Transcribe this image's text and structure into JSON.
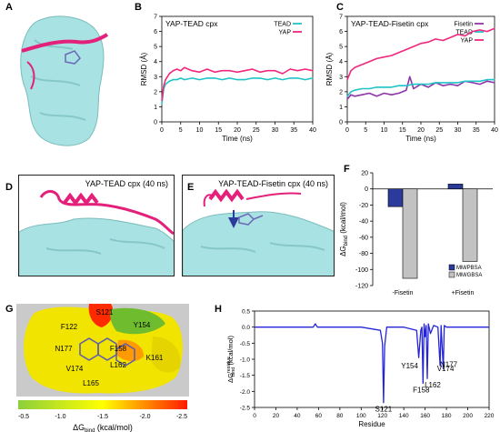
{
  "panels": {
    "A": {
      "label": "A"
    },
    "B": {
      "label": "B",
      "title": "YAP-TEAD cpx"
    },
    "C": {
      "label": "C",
      "title": "YAP-TEAD-Fisetin cpx"
    },
    "D": {
      "label": "D",
      "title": "YAP-TEAD cpx (40 ns)"
    },
    "E": {
      "label": "E",
      "title": "YAP-TEAD-Fisetin cpx (40 ns)"
    },
    "F": {
      "label": "F"
    },
    "G": {
      "label": "G",
      "residues": [
        "S121",
        "Y154",
        "F122",
        "N177",
        "F158",
        "V174",
        "L162",
        "K161",
        "L165"
      ],
      "colorbar_ticks": [
        "-0.5",
        "-1.0",
        "-1.5",
        "-2.0",
        "-2.5"
      ],
      "colorbar_label": "ΔG",
      "colorbar_label_sub": "bind",
      "colorbar_label_unit": " (kcal/mol)"
    },
    "H": {
      "label": "H"
    }
  },
  "chart_data": [
    {
      "id": "B",
      "type": "line",
      "title": "YAP-TEAD cpx",
      "xlabel": "Time (ns)",
      "ylabel": "RMSD (Å)",
      "xlim": [
        0,
        40
      ],
      "ylim": [
        0,
        7
      ],
      "xticks": [
        0,
        5,
        10,
        15,
        20,
        25,
        30,
        35,
        40
      ],
      "yticks": [
        0,
        1,
        2,
        3,
        4,
        5,
        6,
        7
      ],
      "legend_position": "top-right",
      "series": [
        {
          "name": "TEAD",
          "color": "#1fc3c8",
          "x": [
            0,
            0.5,
            1,
            2,
            3,
            4,
            5,
            6,
            8,
            10,
            12,
            14,
            16,
            18,
            20,
            22,
            24,
            26,
            28,
            30,
            32,
            34,
            36,
            38,
            40
          ],
          "values": [
            1.2,
            2.2,
            2.5,
            2.7,
            2.8,
            2.8,
            2.9,
            2.8,
            2.9,
            2.8,
            2.9,
            2.9,
            2.8,
            2.9,
            2.8,
            2.8,
            2.9,
            2.9,
            2.8,
            2.9,
            2.8,
            2.9,
            2.9,
            2.8,
            2.9
          ]
        },
        {
          "name": "YAP",
          "color": "#f0287d",
          "x": [
            0,
            0.5,
            1,
            2,
            3,
            4,
            5,
            6,
            8,
            10,
            12,
            14,
            16,
            18,
            20,
            22,
            24,
            26,
            28,
            30,
            32,
            34,
            36,
            38,
            40
          ],
          "values": [
            1.4,
            2.4,
            2.8,
            3.2,
            3.4,
            3.5,
            3.4,
            3.6,
            3.4,
            3.3,
            3.5,
            3.3,
            3.4,
            3.4,
            3.3,
            3.4,
            3.5,
            3.3,
            3.4,
            3.4,
            3.2,
            3.5,
            3.4,
            3.5,
            3.4
          ]
        }
      ]
    },
    {
      "id": "C",
      "type": "line",
      "title": "YAP-TEAD-Fisetin cpx",
      "xlabel": "Time (ns)",
      "ylabel": "RMSD (Å)",
      "xlim": [
        0,
        40
      ],
      "ylim": [
        0,
        7
      ],
      "xticks": [
        0,
        5,
        10,
        15,
        20,
        25,
        30,
        35,
        40
      ],
      "yticks": [
        0,
        1,
        2,
        3,
        4,
        5,
        6,
        7
      ],
      "legend_position": "top-right",
      "series": [
        {
          "name": "Fisetin",
          "color": "#8e35a8",
          "x": [
            0,
            1,
            2,
            4,
            6,
            8,
            10,
            12,
            14,
            16,
            17,
            18,
            20,
            22,
            24,
            26,
            28,
            30,
            32,
            34,
            36,
            38,
            40
          ],
          "values": [
            1.5,
            1.8,
            1.7,
            1.8,
            1.9,
            1.7,
            1.9,
            1.8,
            1.9,
            2.1,
            3.0,
            2.2,
            2.5,
            2.3,
            2.6,
            2.4,
            2.5,
            2.4,
            2.7,
            2.6,
            2.5,
            2.7,
            2.6
          ]
        },
        {
          "name": "TEAD",
          "color": "#1fc3c8",
          "x": [
            0,
            1,
            2,
            4,
            6,
            8,
            10,
            12,
            14,
            16,
            18,
            20,
            22,
            24,
            26,
            28,
            30,
            32,
            34,
            36,
            38,
            40
          ],
          "values": [
            1.7,
            2.0,
            2.1,
            2.2,
            2.2,
            2.3,
            2.3,
            2.3,
            2.4,
            2.4,
            2.5,
            2.5,
            2.5,
            2.6,
            2.6,
            2.6,
            2.6,
            2.7,
            2.7,
            2.7,
            2.8,
            2.8
          ]
        },
        {
          "name": "YAP",
          "color": "#f0287d",
          "x": [
            0,
            1,
            2,
            4,
            6,
            8,
            10,
            12,
            14,
            16,
            18,
            20,
            22,
            24,
            26,
            28,
            30,
            32,
            34,
            36,
            38,
            40
          ],
          "values": [
            2.8,
            3.4,
            3.6,
            3.8,
            4.0,
            4.2,
            4.3,
            4.4,
            4.6,
            4.8,
            5.0,
            5.2,
            5.3,
            5.5,
            5.4,
            5.6,
            5.8,
            5.7,
            6.0,
            6.1,
            6.0,
            6.2
          ]
        }
      ]
    },
    {
      "id": "F",
      "type": "bar",
      "categories": [
        "-Fisetin",
        "+Fisetin"
      ],
      "ylabel": "ΔG",
      "ylabel_sub": "bind",
      "ylabel_unit": " (kcal/mol)",
      "ylim": [
        -120,
        20
      ],
      "yticks": [
        20,
        0,
        -20,
        -40,
        -60,
        -80,
        -100,
        -120
      ],
      "legend_position": "bottom-right",
      "series": [
        {
          "name": "MM/PBSA",
          "color": "#2b3b9c",
          "values": [
            -22,
            6
          ]
        },
        {
          "name": "MM/GBSA",
          "color": "#c2c2c2",
          "values": [
            -111,
            -90
          ]
        }
      ]
    },
    {
      "id": "H",
      "type": "line",
      "xlabel": "Residue",
      "ylabel": "ΔG",
      "ylabel_sub": "bind",
      "ylabel_sup": "residue",
      "ylabel_unit": " (kcal/mol)",
      "xlim": [
        0,
        220
      ],
      "ylim": [
        -2.5,
        0.5
      ],
      "xticks": [
        0,
        20,
        40,
        60,
        80,
        100,
        120,
        140,
        160,
        180,
        200,
        220
      ],
      "yticks": [
        0.5,
        0.0,
        -0.5,
        -1.0,
        -1.5,
        -2.0,
        -2.5
      ],
      "series": [
        {
          "name": "",
          "color": "#2424d8",
          "x": [
            0,
            20,
            40,
            55,
            57,
            59,
            80,
            100,
            118,
            120,
            121,
            122,
            124,
            140,
            152,
            154,
            156,
            157,
            158,
            159,
            160,
            161,
            162,
            163,
            165,
            168,
            172,
            174,
            175,
            177,
            178,
            180,
            200,
            220
          ],
          "values": [
            0,
            0,
            0,
            0,
            0.1,
            0,
            0,
            0,
            -0.1,
            -0.5,
            -2.35,
            -0.6,
            0,
            0,
            -0.1,
            -0.95,
            -0.1,
            0,
            -1.75,
            0.1,
            -0.3,
            0.05,
            -1.6,
            0.1,
            -0.2,
            0.05,
            0,
            -1.2,
            0.05,
            -1.3,
            0.05,
            0,
            0,
            0
          ]
        }
      ],
      "annotations": [
        {
          "text": "S121",
          "x": 121,
          "y": -2.35
        },
        {
          "text": "Y154",
          "x": 154,
          "y": -0.95
        },
        {
          "text": "F158",
          "x": 158,
          "y": -1.75
        },
        {
          "text": "L162",
          "x": 162,
          "y": -1.6
        },
        {
          "text": "V174",
          "x": 174,
          "y": -1.2
        },
        {
          "text": "N177",
          "x": 177,
          "y": -1.3
        }
      ]
    }
  ]
}
